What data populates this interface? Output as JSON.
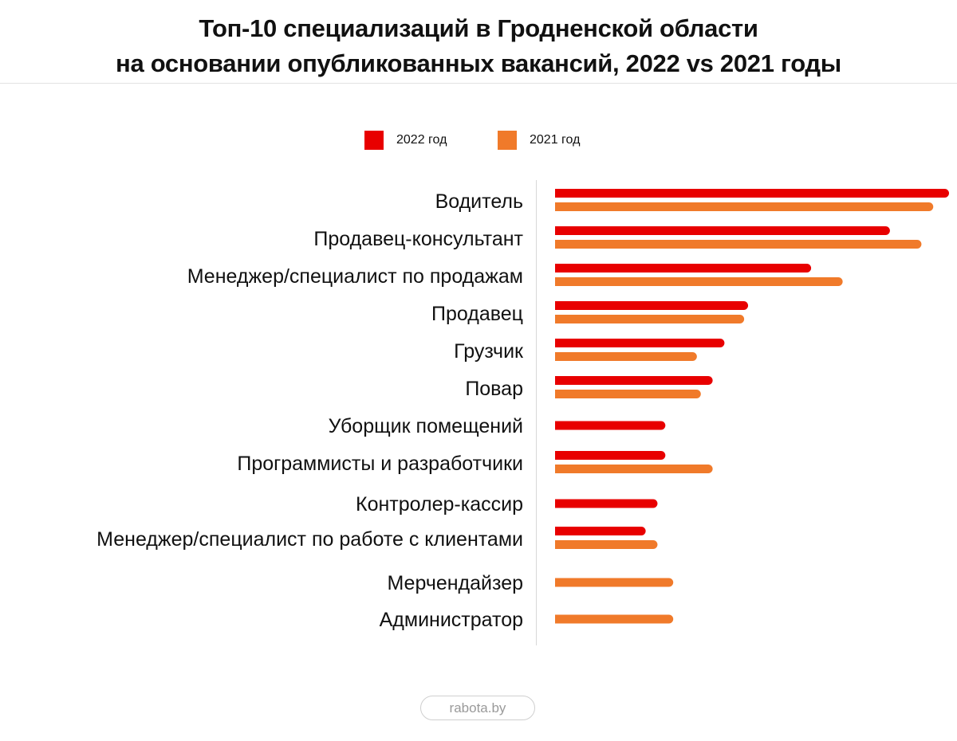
{
  "chart_data": {
    "type": "bar",
    "orientation": "horizontal",
    "title": [
      "Топ-10 специализаций в Гродненской области",
      "на основании опубликованных вакансий, 2022 vs 2021 годы"
    ],
    "categories": [
      "Водитель",
      "Продавец-консультант",
      "Менеджер/специалист по продажам",
      "Продавец",
      "Грузчик",
      "Повар",
      "Уборщик помещений",
      "Программисты и разработчики",
      "Контролер-кассир",
      "Менеджер/специалист по работе с клиентами",
      "Мерчендайзер",
      "Администратор"
    ],
    "series": [
      {
        "name": "2022 год",
        "color": "#e80000",
        "values": [
          100,
          85,
          65,
          49,
          43,
          40,
          28,
          28,
          26,
          23,
          null,
          null
        ]
      },
      {
        "name": "2021 год",
        "color": "#f07a2a",
        "values": [
          96,
          93,
          73,
          48,
          36,
          37,
          null,
          40,
          null,
          26,
          30,
          30
        ]
      }
    ],
    "value_note_scale": "relative, no axis printed",
    "legend": "top-center",
    "grid": false
  },
  "footer": {
    "source": "rabota.by"
  }
}
